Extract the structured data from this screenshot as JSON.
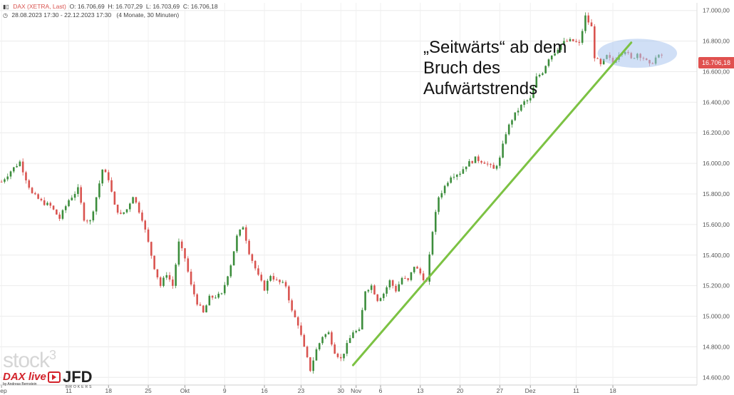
{
  "header": {
    "symbol": "DAX (XETRA, Last)",
    "open": "O: 16.706,69",
    "high": "H: 16.707,29",
    "low": "L: 16.703,69",
    "close": "C: 16.706,18",
    "range": "28.08.2023 17:30 - 22.12.2023 17:30",
    "range_note": "(4 Monate, 30 Minuten)"
  },
  "annotation": {
    "line1": "„Seitwärts“ ab dem",
    "line2": "Bruch des",
    "line3": "Aufwärtstrends"
  },
  "logos": {
    "stock": "stock",
    "stock_sup": "3",
    "dax_live": "DAX live",
    "dax_sub": "by Andreas Bernstein",
    "jfd": "JFD",
    "jfd_sub": "BROKERS"
  },
  "colors": {
    "candle_up": "#3c8d3c",
    "candle_down": "#d9534f",
    "trend_line": "#7cc243",
    "highlight": "#a9c5ee",
    "price_tag": "#e0514f"
  },
  "chart_data": {
    "type": "candlestick",
    "title": "DAX (XETRA, Last)",
    "interval": "30 Minuten",
    "ylim": [
      14550,
      17050
    ],
    "y_ticks": [
      "14.600,00",
      "14.800,00",
      "15.000,00",
      "15.200,00",
      "15.400,00",
      "15.600,00",
      "15.800,00",
      "16.000,00",
      "16.200,00",
      "16.400,00",
      "16.600,00",
      "16.800,00",
      "17.000,00"
    ],
    "y_tick_values": [
      14600,
      14800,
      15000,
      15200,
      15400,
      15600,
      15800,
      16000,
      16200,
      16400,
      16600,
      16800,
      17000
    ],
    "x_ticks": [
      "Sep",
      "11",
      "18",
      "25",
      "Okt",
      "9",
      "16",
      "23",
      "30",
      "Nov",
      "6",
      "13",
      "20",
      "27",
      "Dez",
      "11",
      "18"
    ],
    "x_tick_index": [
      0,
      22,
      35,
      48,
      60,
      73,
      86,
      98,
      111,
      116,
      124,
      137,
      150,
      163,
      173,
      188,
      200
    ],
    "total_points": 228,
    "last_price": "16.706,18",
    "close_path": [
      [
        0,
        15880
      ],
      [
        3,
        15950
      ],
      [
        6,
        16010
      ],
      [
        8,
        15900
      ],
      [
        10,
        15800
      ],
      [
        13,
        15750
      ],
      [
        16,
        15720
      ],
      [
        19,
        15640
      ],
      [
        22,
        15760
      ],
      [
        25,
        15830
      ],
      [
        27,
        15640
      ],
      [
        29,
        15620
      ],
      [
        31,
        15780
      ],
      [
        33,
        15960
      ],
      [
        35,
        15900
      ],
      [
        37,
        15720
      ],
      [
        39,
        15660
      ],
      [
        41,
        15700
      ],
      [
        43,
        15790
      ],
      [
        46,
        15640
      ],
      [
        48,
        15480
      ],
      [
        50,
        15320
      ],
      [
        52,
        15200
      ],
      [
        54,
        15280
      ],
      [
        56,
        15200
      ],
      [
        58,
        15480
      ],
      [
        60,
        15380
      ],
      [
        62,
        15200
      ],
      [
        64,
        15090
      ],
      [
        66,
        15020
      ],
      [
        68,
        15120
      ],
      [
        70,
        15130
      ],
      [
        72,
        15140
      ],
      [
        75,
        15340
      ],
      [
        77,
        15520
      ],
      [
        79,
        15590
      ],
      [
        81,
        15420
      ],
      [
        84,
        15260
      ],
      [
        86,
        15180
      ],
      [
        88,
        15270
      ],
      [
        90,
        15230
      ],
      [
        93,
        15200
      ],
      [
        95,
        15030
      ],
      [
        97,
        14950
      ],
      [
        99,
        14790
      ],
      [
        101,
        14650
      ],
      [
        103,
        14780
      ],
      [
        105,
        14870
      ],
      [
        107,
        14890
      ],
      [
        109,
        14770
      ],
      [
        111,
        14720
      ],
      [
        113,
        14810
      ],
      [
        115,
        14900
      ],
      [
        117,
        14900
      ],
      [
        119,
        15170
      ],
      [
        121,
        15200
      ],
      [
        123,
        15110
      ],
      [
        125,
        15150
      ],
      [
        127,
        15230
      ],
      [
        129,
        15170
      ],
      [
        131,
        15250
      ],
      [
        133,
        15230
      ],
      [
        135,
        15330
      ],
      [
        137,
        15280
      ],
      [
        139,
        15220
      ],
      [
        141,
        15560
      ],
      [
        143,
        15780
      ],
      [
        145,
        15850
      ],
      [
        147,
        15920
      ],
      [
        150,
        15940
      ],
      [
        152,
        15990
      ],
      [
        155,
        16030
      ],
      [
        158,
        16010
      ],
      [
        161,
        15960
      ],
      [
        163,
        16030
      ],
      [
        165,
        16200
      ],
      [
        167,
        16290
      ],
      [
        169,
        16350
      ],
      [
        171,
        16400
      ],
      [
        173,
        16420
      ],
      [
        175,
        16560
      ],
      [
        177,
        16600
      ],
      [
        179,
        16690
      ],
      [
        181,
        16730
      ],
      [
        183,
        16780
      ],
      [
        185,
        16800
      ],
      [
        187,
        16800
      ],
      [
        189,
        16780
      ],
      [
        191,
        16960
      ],
      [
        193,
        16890
      ],
      [
        194,
        16700
      ],
      [
        196,
        16640
      ],
      [
        198,
        16700
      ],
      [
        200,
        16660
      ],
      [
        202,
        16720
      ],
      [
        204,
        16740
      ],
      [
        206,
        16680
      ],
      [
        208,
        16720
      ],
      [
        210,
        16690
      ],
      [
        212,
        16640
      ],
      [
        214,
        16690
      ],
      [
        216,
        16706
      ]
    ],
    "trend_line": {
      "from": [
        115,
        14680
      ],
      "to": [
        206,
        16790
      ]
    },
    "highlight_ellipse": {
      "center": [
        208,
        16720
      ],
      "rx_points": 13,
      "ry_value": 95
    }
  }
}
